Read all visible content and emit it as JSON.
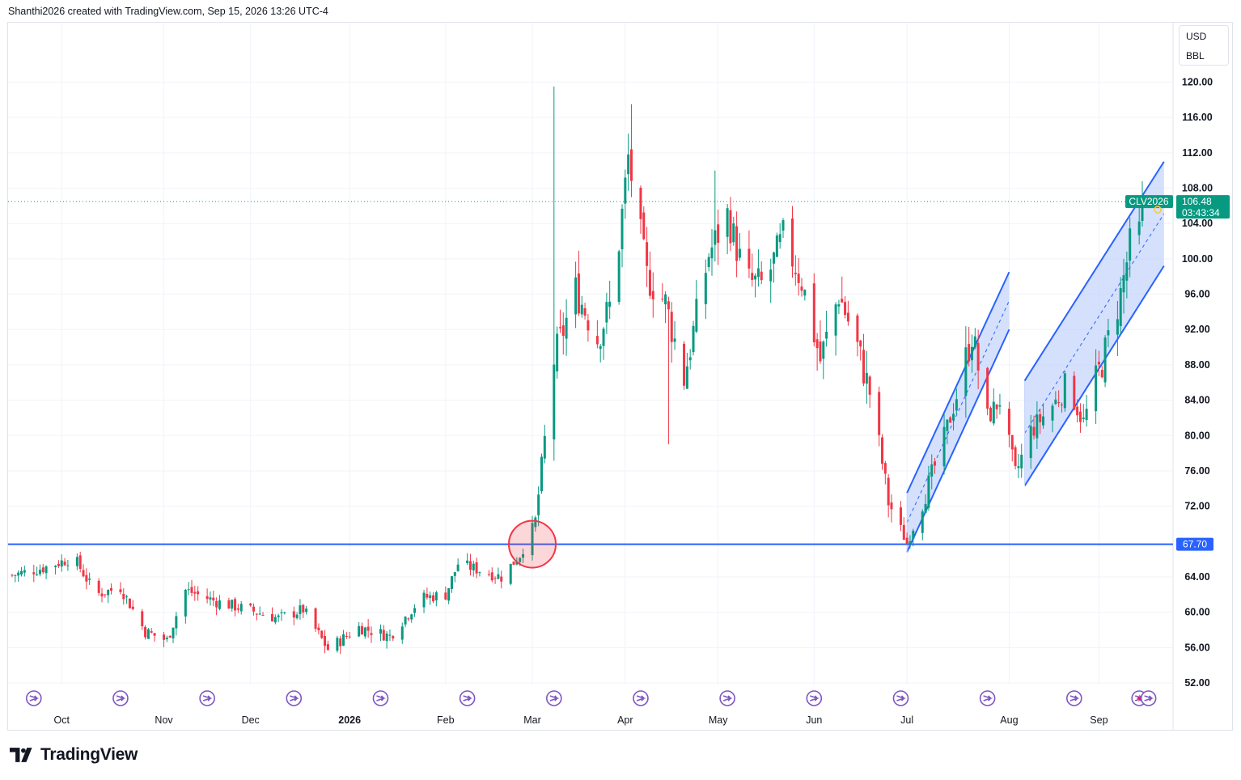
{
  "header": {
    "caption": "Shanthi2026 created with TradingView.com, Sep 15, 2026 13:26 UTC-4"
  },
  "units": {
    "currency": "USD",
    "unit": "BBL"
  },
  "branding": {
    "logo_text": "TradingView"
  },
  "colors": {
    "up": "#089981",
    "down": "#f23645",
    "level_line": "#2962ff",
    "channel_fill": "#c5d5fb",
    "event_icon": "#7e57c2",
    "circle": "#f23645"
  },
  "chart_data": {
    "type": "candlestick",
    "symbol_label": "CLV2026",
    "last_price": "106.48",
    "countdown": "03:43:34",
    "level_label": "67.70",
    "level_value": 67.7,
    "ylim": [
      49,
      124
    ],
    "y_ticks": [
      "120.00",
      "116.00",
      "112.00",
      "108.00",
      "104.00",
      "100.00",
      "96.00",
      "92.00",
      "88.00",
      "84.00",
      "80.00",
      "76.00",
      "72.00",
      "67.70",
      "64.00",
      "60.00",
      "56.00",
      "52.00"
    ],
    "y_tick_values": [
      120,
      116,
      112,
      108,
      104,
      100,
      96,
      92,
      88,
      84,
      80,
      76,
      72,
      64,
      60,
      56,
      52
    ],
    "x_labels": [
      "Oct",
      "Nov",
      "Dec",
      "2026",
      "Feb",
      "Mar",
      "Apr",
      "May",
      "Jun",
      "Jul",
      "Aug",
      "Sep"
    ],
    "x_label_dates": [
      "2025-10-01",
      "2025-11-03",
      "2025-12-01",
      "2026-01-02",
      "2026-02-02",
      "2026-03-02",
      "2026-04-01",
      "2026-05-01",
      "2026-06-01",
      "2026-07-01",
      "2026-08-03",
      "2026-09-01"
    ],
    "start_date": "2025-09-15",
    "end_date": "2026-09-15",
    "anchors": [
      [
        "2025-09-15",
        64.2
      ],
      [
        "2025-09-25",
        65.0
      ],
      [
        "2025-10-05",
        66.2
      ],
      [
        "2025-10-12",
        62.0
      ],
      [
        "2025-10-20",
        62.8
      ],
      [
        "2025-10-28",
        57.8
      ],
      [
        "2025-11-04",
        56.8
      ],
      [
        "2025-11-10",
        62.5
      ],
      [
        "2025-11-20",
        61.2
      ],
      [
        "2025-12-01",
        60.2
      ],
      [
        "2025-12-10",
        59.3
      ],
      [
        "2025-12-18",
        60.3
      ],
      [
        "2025-12-26",
        55.8
      ],
      [
        "2026-01-05",
        58.3
      ],
      [
        "2026-01-15",
        57.3
      ],
      [
        "2026-01-25",
        61.6
      ],
      [
        "2026-02-02",
        62.0
      ],
      [
        "2026-02-06",
        65.5
      ],
      [
        "2026-02-20",
        64.0
      ],
      [
        "2026-02-26",
        66.5
      ],
      [
        "2026-03-03",
        70.2
      ],
      [
        "2026-03-06",
        79.5
      ],
      [
        "2026-03-09",
        88.5
      ],
      [
        "2026-03-16",
        96.5
      ],
      [
        "2026-03-23",
        91.0
      ],
      [
        "2026-03-28",
        95.5
      ],
      [
        "2026-04-02",
        111.5
      ],
      [
        "2026-04-08",
        98.0
      ],
      [
        "2026-04-14",
        95.0
      ],
      [
        "2026-04-20",
        86.5
      ],
      [
        "2026-04-28",
        100.5
      ],
      [
        "2026-05-04",
        105.0
      ],
      [
        "2026-05-10",
        97.5
      ],
      [
        "2026-05-16",
        97.0
      ],
      [
        "2026-05-22",
        102.5
      ],
      [
        "2026-05-28",
        97.5
      ],
      [
        "2026-06-03",
        88.5
      ],
      [
        "2026-06-09",
        96.0
      ],
      [
        "2026-06-15",
        90.0
      ],
      [
        "2026-06-20",
        83.5
      ],
      [
        "2026-06-25",
        72.5
      ],
      [
        "2026-07-01",
        67.8
      ],
      [
        "2026-07-06",
        72.5
      ],
      [
        "2026-07-12",
        78.5
      ],
      [
        "2026-07-17",
        84.5
      ],
      [
        "2026-07-22",
        91.5
      ],
      [
        "2026-07-27",
        82.0
      ],
      [
        "2026-07-31",
        84.0
      ],
      [
        "2026-08-05",
        75.5
      ],
      [
        "2026-08-10",
        80.5
      ],
      [
        "2026-08-16",
        83.0
      ],
      [
        "2026-08-22",
        85.5
      ],
      [
        "2026-08-27",
        81.5
      ],
      [
        "2026-09-03",
        89.5
      ],
      [
        "2026-09-08",
        96.0
      ],
      [
        "2026-09-11",
        101.5
      ],
      [
        "2026-09-14",
        103.0
      ],
      [
        "2026-09-15",
        106.48
      ]
    ],
    "spikes": [
      [
        "2026-03-09",
        119.5
      ],
      [
        "2026-04-03",
        117.5
      ],
      [
        "2026-04-30",
        110.0
      ],
      [
        "2026-04-15",
        79.0
      ]
    ],
    "channels": [
      {
        "upper": [
          [
            "2026-07-01",
            73.5
          ],
          [
            "2026-08-03",
            98.5
          ]
        ],
        "lower": [
          [
            "2026-07-01",
            66.8
          ],
          [
            "2026-08-03",
            92.0
          ]
        ]
      },
      {
        "upper": [
          [
            "2026-08-08",
            86.2
          ],
          [
            "2026-09-22",
            111.0
          ]
        ],
        "lower": [
          [
            "2026-08-08",
            74.3
          ],
          [
            "2026-09-22",
            99.2
          ]
        ]
      }
    ],
    "highlight_circle": {
      "date": "2026-03-02",
      "value": 67.7
    },
    "event_dates": [
      "2025-09-22",
      "2025-10-20",
      "2025-11-17",
      "2025-12-15",
      "2026-01-12",
      "2026-02-09",
      "2026-03-09",
      "2026-04-06",
      "2026-05-04",
      "2026-06-01",
      "2026-06-29",
      "2026-07-27",
      "2026-08-24",
      "2026-09-14",
      "2026-09-17"
    ]
  }
}
